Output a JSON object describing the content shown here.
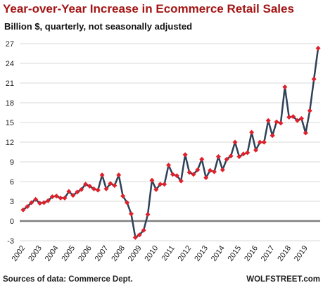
{
  "chart_data": {
    "type": "line",
    "title": "Year-over-Year  Increase in Ecommerce Retail Sales",
    "subtitle": "Billion $, quarterly, not seasonally adjusted",
    "source": "Sources of data: Commerce Dept.",
    "credit": "WOLFSTREET.com",
    "categories": [
      "2002",
      null,
      null,
      null,
      "2003",
      null,
      null,
      null,
      "2004",
      null,
      null,
      null,
      "2005",
      null,
      null,
      null,
      "2006",
      null,
      null,
      null,
      "2007",
      null,
      null,
      null,
      "2008",
      null,
      null,
      null,
      "2009",
      null,
      null,
      null,
      "2010",
      null,
      null,
      null,
      "2011",
      null,
      null,
      null,
      "2012",
      null,
      null,
      null,
      "2013",
      null,
      null,
      null,
      "2014",
      null,
      null,
      null,
      "2015",
      null,
      null,
      null,
      "2016",
      null,
      null,
      null,
      "2017",
      null,
      null,
      null,
      "2018",
      null,
      null,
      null,
      "2019",
      null,
      null,
      null
    ],
    "series": [
      {
        "name": "YoY increase",
        "color": "#2f4058",
        "marker_color": "#e0202a",
        "values": [
          1.7,
          2.2,
          2.8,
          3.3,
          2.7,
          2.8,
          3.1,
          3.7,
          3.8,
          3.5,
          3.5,
          4.5,
          3.9,
          4.4,
          4.8,
          5.6,
          5.3,
          4.9,
          4.7,
          7.0,
          4.9,
          5.7,
          5.4,
          7.0,
          3.8,
          2.8,
          1.1,
          -2.5,
          -2.1,
          -1.4,
          1.0,
          6.2,
          4.8,
          5.6,
          5.6,
          8.5,
          7.1,
          6.9,
          6.1,
          10.1,
          7.4,
          7.1,
          7.8,
          9.4,
          6.6,
          7.7,
          7.5,
          9.8,
          7.8,
          9.4,
          9.9,
          12.0,
          9.8,
          10.2,
          10.4,
          13.5,
          10.8,
          12.0,
          12.0,
          15.3,
          13.0,
          15.1,
          14.9,
          20.4,
          15.8,
          15.9,
          15.3,
          15.6,
          13.4,
          16.8,
          21.6,
          26.3
        ]
      }
    ],
    "ylim": [
      -3,
      27
    ],
    "yticks": [
      -3,
      0,
      3,
      6,
      9,
      12,
      15,
      18,
      21,
      24,
      27
    ],
    "grid": true
  }
}
